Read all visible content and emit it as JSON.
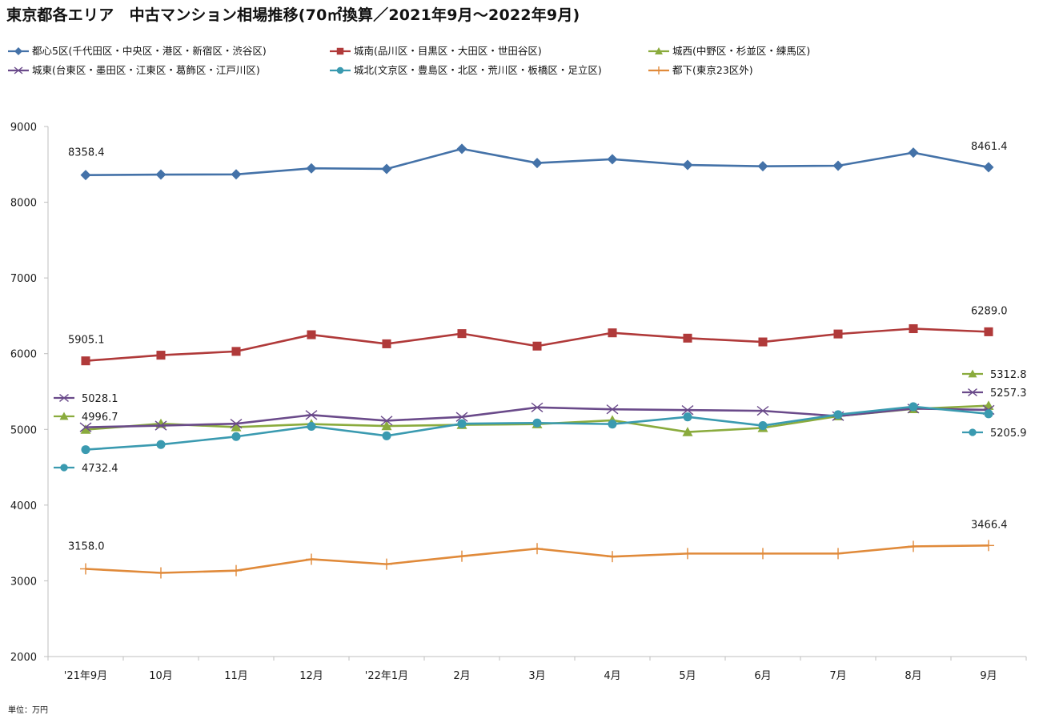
{
  "title": "東京都各エリア　中古マンション相場推移(70㎡換算／2021年9月～2022年9月)",
  "unit_note": "単位：万円",
  "colors": {
    "axis": "#bfbfbf",
    "text": "#1a1a1a"
  },
  "chart_data": {
    "type": "line",
    "title": "東京都各エリア　中古マンション相場推移(70㎡換算／2021年9月～2022年9月)",
    "categories": [
      "'21年9月",
      "10月",
      "11月",
      "12月",
      "'22年1月",
      "2月",
      "3月",
      "4月",
      "5月",
      "6月",
      "7月",
      "8月",
      "9月"
    ],
    "ylim": [
      2000,
      9000
    ],
    "yticks": [
      2000,
      3000,
      4000,
      5000,
      6000,
      7000,
      8000,
      9000
    ],
    "grid": false,
    "legend_position": "top",
    "ylabel": "",
    "xlabel": "",
    "series": [
      {
        "name": "都心5区(千代田区・中央区・港区・新宿区・渋谷区)",
        "color": "#4472a8",
        "marker": "diamond",
        "values": [
          8358.4,
          8365,
          8368,
          8448,
          8440,
          8705,
          8518,
          8568,
          8492,
          8475,
          8482,
          8655,
          8461.4
        ],
        "labels": [
          {
            "index": 0,
            "text": "8358.4"
          },
          {
            "index": 12,
            "text": "8461.4"
          }
        ]
      },
      {
        "name": "城南(品川区・目黒区・大田区・世田谷区)",
        "color": "#b03a3a",
        "marker": "square",
        "values": [
          5905.1,
          5980,
          6030,
          6250,
          6130,
          6265,
          6100,
          6275,
          6205,
          6155,
          6260,
          6330,
          6289.0
        ],
        "labels": [
          {
            "index": 0,
            "text": "5905.1"
          },
          {
            "index": 12,
            "text": "6289.0"
          }
        ]
      },
      {
        "name": "城西(中野区・杉並区・練馬区)",
        "color": "#8aab3d",
        "marker": "triangle",
        "values": [
          4996.7,
          5075,
          5030,
          5070,
          5045,
          5060,
          5070,
          5120,
          4965,
          5020,
          5175,
          5270,
          5312.8
        ],
        "labels": [
          {
            "index": 0,
            "text": "4996.7"
          },
          {
            "index": 12,
            "text": "5312.8"
          }
        ]
      },
      {
        "name": "城東(台東区・墨田区・江東区・葛飾区・江戸川区)",
        "color": "#6a4a8a",
        "marker": "x",
        "values": [
          5028.1,
          5050,
          5075,
          5190,
          5115,
          5165,
          5290,
          5265,
          5255,
          5245,
          5175,
          5275,
          5257.3
        ],
        "labels": [
          {
            "index": 0,
            "text": "5028.1"
          },
          {
            "index": 12,
            "text": "5257.3"
          }
        ]
      },
      {
        "name": "城北(文京区・豊島区・北区・荒川区・板橋区・足立区)",
        "color": "#3a9ab0",
        "marker": "circle",
        "values": [
          4732.4,
          4800,
          4905,
          5040,
          4915,
          5075,
          5085,
          5070,
          5165,
          5050,
          5195,
          5300,
          5205.9
        ],
        "labels": [
          {
            "index": 0,
            "text": "4732.4"
          },
          {
            "index": 12,
            "text": "5205.9"
          }
        ]
      },
      {
        "name": "都下(東京23区外)",
        "color": "#e08a3a",
        "marker": "plus",
        "values": [
          3158.0,
          3105,
          3135,
          3285,
          3220,
          3325,
          3425,
          3320,
          3360,
          3360,
          3360,
          3455,
          3466.4
        ],
        "labels": [
          {
            "index": 0,
            "text": "3158.0"
          },
          {
            "index": 12,
            "text": "3466.4"
          }
        ]
      }
    ]
  }
}
